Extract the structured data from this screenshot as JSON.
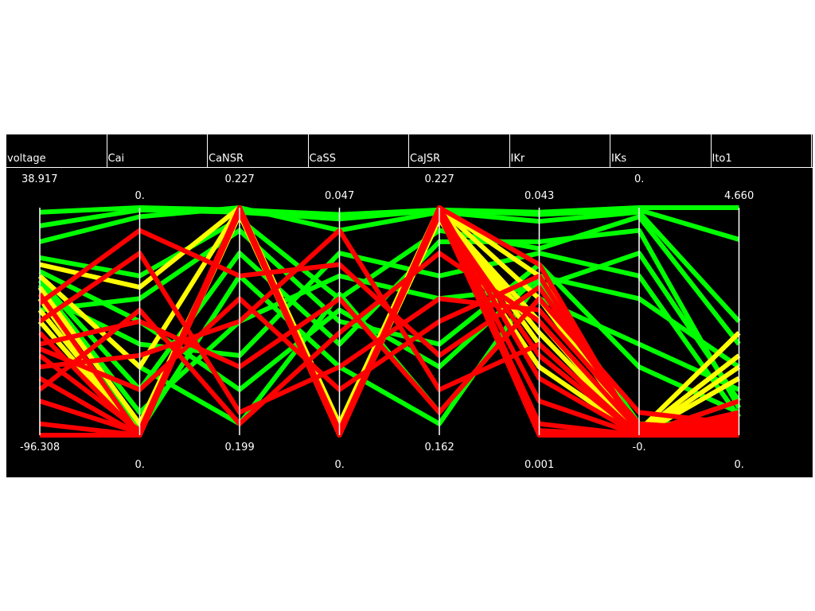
{
  "chart_data": {
    "type": "parallel-coordinates",
    "axes": [
      {
        "name": "voltage",
        "max": "38.917",
        "min": "-96.308"
      },
      {
        "name": "Cai",
        "max": "0.",
        "min": "0."
      },
      {
        "name": "CaNSR",
        "max": "0.227",
        "min": "0.199"
      },
      {
        "name": "CaSS",
        "max": "0.047",
        "min": "0."
      },
      {
        "name": "CaJSR",
        "max": "0.227",
        "min": "0.162"
      },
      {
        "name": "IKr",
        "max": "0.043",
        "min": "0.001"
      },
      {
        "name": "IKs",
        "max": "0.",
        "min": "-0."
      },
      {
        "name": "Ito1",
        "max": "4.660",
        "min": "0."
      }
    ],
    "colors": {
      "background": "#000000",
      "axis": "#ffffff",
      "text": "#ffffff",
      "cluster_a": "#00ff00",
      "cluster_b": "#ffff00",
      "cluster_c": "#ff0000"
    },
    "series": [
      {
        "color": "#00ff00",
        "values": [
          0.98,
          1.0,
          0.99,
          0.97,
          0.99,
          0.98,
          1.0,
          1.0
        ]
      },
      {
        "color": "#00ff00",
        "values": [
          0.92,
          0.99,
          0.98,
          0.95,
          0.99,
          0.97,
          0.99,
          0.86
        ]
      },
      {
        "color": "#00ff00",
        "values": [
          0.85,
          0.96,
          1.0,
          0.9,
          0.98,
          0.94,
          0.98,
          0.5
        ]
      },
      {
        "color": "#00ff00",
        "values": [
          0.78,
          0.7,
          0.95,
          0.6,
          0.9,
          0.82,
          0.96,
          0.4
        ]
      },
      {
        "color": "#00ff00",
        "values": [
          0.72,
          0.5,
          0.2,
          0.55,
          0.3,
          0.7,
          0.6,
          0.3
        ]
      },
      {
        "color": "#00ff00",
        "values": [
          0.7,
          0.3,
          0.05,
          0.62,
          0.1,
          0.6,
          0.4,
          0.2
        ]
      },
      {
        "color": "#00ff00",
        "values": [
          0.66,
          0.1,
          0.5,
          0.7,
          0.6,
          0.65,
          0.8,
          0.15
        ]
      },
      {
        "color": "#00ff00",
        "values": [
          0.6,
          0.02,
          0.7,
          0.3,
          0.05,
          0.68,
          0.05,
          0.05
        ]
      },
      {
        "color": "#00ff00",
        "values": [
          0.55,
          0.6,
          0.9,
          0.5,
          0.4,
          0.75,
          0.3,
          0.1
        ]
      },
      {
        "color": "#00ff00",
        "values": [
          0.62,
          0.4,
          0.35,
          0.8,
          0.7,
          0.8,
          0.7,
          0.08
        ]
      },
      {
        "color": "#00ff00",
        "values": [
          0.68,
          0.2,
          0.8,
          0.4,
          0.85,
          0.85,
          0.9,
          0.12
        ]
      },
      {
        "color": "#ffff00",
        "values": [
          0.75,
          0.65,
          1.0,
          0.05,
          1.0,
          0.7,
          0.02,
          0.45
        ]
      },
      {
        "color": "#ffff00",
        "values": [
          0.7,
          0.3,
          1.0,
          0.02,
          1.0,
          0.6,
          0.01,
          0.35
        ]
      },
      {
        "color": "#ffff00",
        "values": [
          0.65,
          0.05,
          0.98,
          0.0,
          0.98,
          0.5,
          0.0,
          0.25
        ]
      },
      {
        "color": "#ffff00",
        "values": [
          0.6,
          0.0,
          1.0,
          0.0,
          1.0,
          0.4,
          0.0,
          0.15
        ]
      },
      {
        "color": "#ffff00",
        "values": [
          0.55,
          0.01,
          0.97,
          0.01,
          0.95,
          0.3,
          0.0,
          0.07
        ]
      },
      {
        "color": "#ffff00",
        "values": [
          0.5,
          0.0,
          0.99,
          0.03,
          0.99,
          0.45,
          0.0,
          0.3
        ]
      },
      {
        "color": "#ff0000",
        "values": [
          0.62,
          0.0,
          1.0,
          0.0,
          1.0,
          0.75,
          0.0,
          0.15
        ]
      },
      {
        "color": "#ff0000",
        "values": [
          0.45,
          0.0,
          0.99,
          0.02,
          0.98,
          0.35,
          0.0,
          0.1
        ]
      },
      {
        "color": "#ff0000",
        "values": [
          0.35,
          0.02,
          1.0,
          0.0,
          1.0,
          0.25,
          0.0,
          0.05
        ]
      },
      {
        "color": "#ff0000",
        "values": [
          0.25,
          0.0,
          0.98,
          0.0,
          0.99,
          0.15,
          0.0,
          0.03
        ]
      },
      {
        "color": "#ff0000",
        "values": [
          0.15,
          0.01,
          1.0,
          0.01,
          1.0,
          0.05,
          0.0,
          0.0
        ]
      },
      {
        "color": "#ff0000",
        "values": [
          0.05,
          0.0,
          0.99,
          0.0,
          0.97,
          0.02,
          0.0,
          0.01
        ]
      },
      {
        "color": "#ff0000",
        "values": [
          0.0,
          0.0,
          1.0,
          0.0,
          1.0,
          0.0,
          0.0,
          0.0
        ]
      },
      {
        "color": "#ff0000",
        "values": [
          0.4,
          0.5,
          0.3,
          0.6,
          0.1,
          0.6,
          0.1,
          0.05
        ]
      },
      {
        "color": "#ff0000",
        "values": [
          0.5,
          0.8,
          0.1,
          0.3,
          0.6,
          0.55,
          0.05,
          0.02
        ]
      },
      {
        "color": "#ff0000",
        "values": [
          0.3,
          0.35,
          0.5,
          0.9,
          0.2,
          0.4,
          0.0,
          0.04
        ]
      },
      {
        "color": "#ff0000",
        "values": [
          0.2,
          0.55,
          0.05,
          0.45,
          0.8,
          0.5,
          0.02,
          0.06
        ]
      },
      {
        "color": "#ff0000",
        "values": [
          0.58,
          0.9,
          0.7,
          0.75,
          0.35,
          0.65,
          0.03,
          0.08
        ]
      },
      {
        "color": "#ff0000",
        "values": [
          0.38,
          0.2,
          0.6,
          0.2,
          0.5,
          0.7,
          0.0,
          0.02
        ]
      }
    ]
  }
}
